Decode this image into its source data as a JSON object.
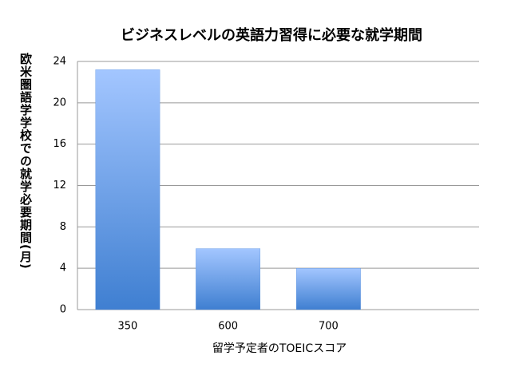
{
  "chart_data": {
    "type": "bar",
    "title": "ビジネスレベルの英語力習得に必要な就学期間",
    "x_label": "留学予定者のTOEICスコア",
    "y_label": "欧米圏語学学校での就学必要期間(月)",
    "categories": [
      "350",
      "600",
      "700",
      null
    ],
    "values": [
      23.2,
      5.9,
      4,
      null
    ],
    "color": "#4a86d8",
    "ylim": [
      0,
      24
    ],
    "yticks": [
      0,
      4,
      8,
      12,
      16,
      20,
      24
    ],
    "grid": true
  }
}
